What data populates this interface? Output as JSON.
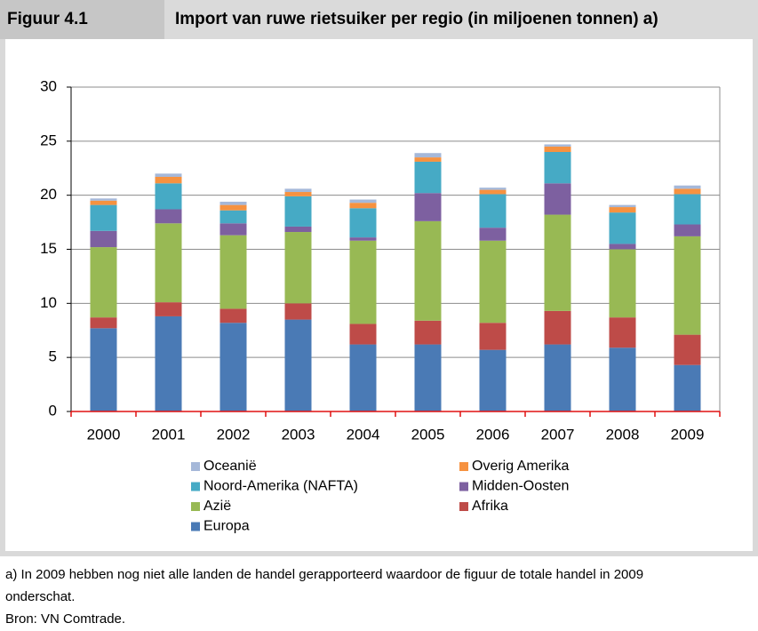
{
  "header": {
    "figure": "Figuur 4.1",
    "title": "Import van ruwe rietsuiker per regio (in miljoenen tonnen) a)"
  },
  "chart_data": {
    "type": "stacked_bar",
    "categories": [
      "2000",
      "2001",
      "2002",
      "2003",
      "2004",
      "2005",
      "2006",
      "2007",
      "2008",
      "2009"
    ],
    "series": [
      {
        "name": "Europa",
        "color": "#4a7ab5",
        "values": [
          7.7,
          8.8,
          8.2,
          8.5,
          6.2,
          6.2,
          5.7,
          6.2,
          5.9,
          4.3
        ]
      },
      {
        "name": "Afrika",
        "color": "#be4b48",
        "values": [
          1.0,
          1.3,
          1.3,
          1.5,
          1.9,
          2.2,
          2.5,
          3.1,
          2.8,
          2.8
        ]
      },
      {
        "name": "Azië",
        "color": "#98b954",
        "values": [
          6.5,
          7.3,
          6.8,
          6.6,
          7.7,
          9.2,
          7.6,
          8.9,
          6.3,
          9.1
        ]
      },
      {
        "name": "Midden-Oosten",
        "color": "#7d60a0",
        "values": [
          1.5,
          1.3,
          1.1,
          0.5,
          0.3,
          2.6,
          1.2,
          2.9,
          0.5,
          1.1
        ]
      },
      {
        "name": "Noord-Amerika (NAFTA)",
        "color": "#46aac5",
        "values": [
          2.4,
          2.4,
          1.2,
          2.8,
          2.7,
          2.9,
          3.1,
          2.9,
          2.9,
          2.8
        ]
      },
      {
        "name": "Overig Amerika",
        "color": "#f69240",
        "values": [
          0.4,
          0.6,
          0.5,
          0.4,
          0.5,
          0.4,
          0.4,
          0.5,
          0.5,
          0.5
        ]
      },
      {
        "name": "Oceanië",
        "color": "#a5b8d9",
        "values": [
          0.2,
          0.3,
          0.3,
          0.3,
          0.3,
          0.4,
          0.2,
          0.2,
          0.2,
          0.3
        ]
      }
    ],
    "ylim": [
      0,
      30
    ],
    "yticks": [
      0,
      5,
      10,
      15,
      20,
      25,
      30
    ],
    "grid": true
  },
  "footnote": "a) In 2009 hebben nog niet alle landen de handel gerapporteerd waardoor de figuur de totale handel in 2009 onderschat.",
  "source": "Bron: VN Comtrade."
}
